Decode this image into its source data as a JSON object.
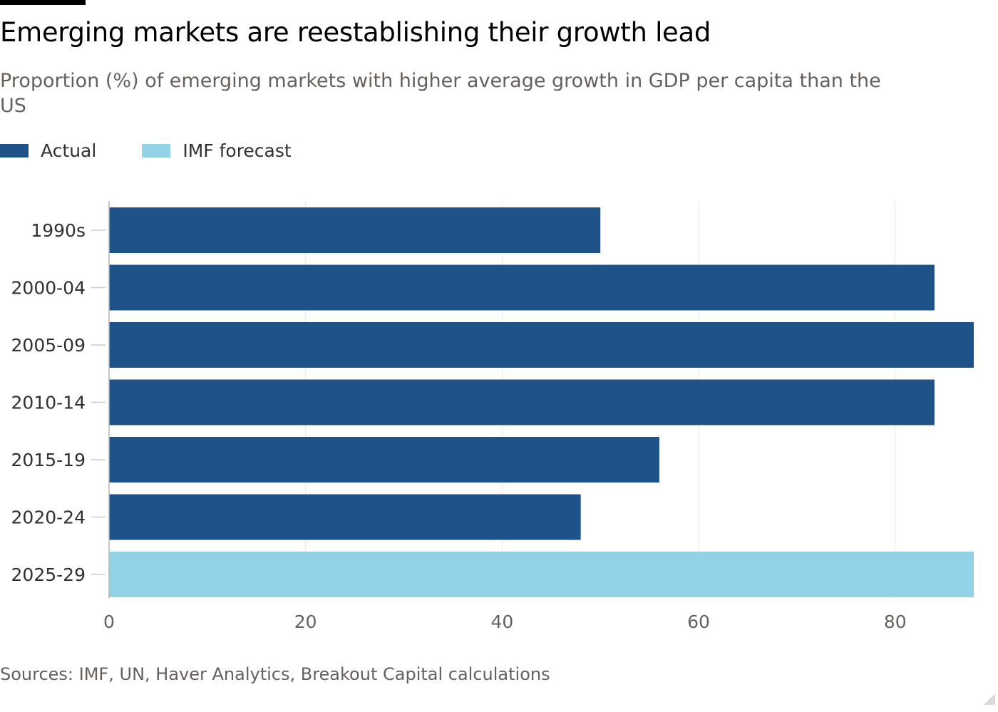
{
  "header": {
    "title": "Emerging markets are reestablishing their growth lead",
    "subtitle": "Proportion (%) of emerging markets with higher average growth in GDP per capita than the US"
  },
  "legend": {
    "actual_label": "Actual",
    "forecast_label": "IMF forecast"
  },
  "colors": {
    "actual": "#20528a",
    "forecast": "#92d2e6",
    "gridline": "#e6e6e6",
    "tick_text": "#66605c",
    "axis_text": "#33302e"
  },
  "footer": {
    "source": "Sources: IMF, UN, Haver Analytics, Breakout Capital calculations"
  },
  "chart_data": {
    "type": "bar",
    "orientation": "horizontal",
    "title": "Emerging markets are reestablishing their growth lead",
    "xlabel": "",
    "ylabel": "",
    "xlim": [
      0,
      88
    ],
    "xticks": [
      0,
      20,
      40,
      60,
      80
    ],
    "grid": true,
    "legend_position": "top-left",
    "categories": [
      "1990s",
      "2000-04",
      "2005-09",
      "2010-14",
      "2015-19",
      "2020-24",
      "2025-29"
    ],
    "series": [
      {
        "name": "Actual",
        "values": [
          50,
          84,
          88,
          84,
          56,
          48,
          null
        ]
      },
      {
        "name": "IMF forecast",
        "values": [
          null,
          null,
          null,
          null,
          null,
          null,
          88
        ]
      }
    ]
  }
}
